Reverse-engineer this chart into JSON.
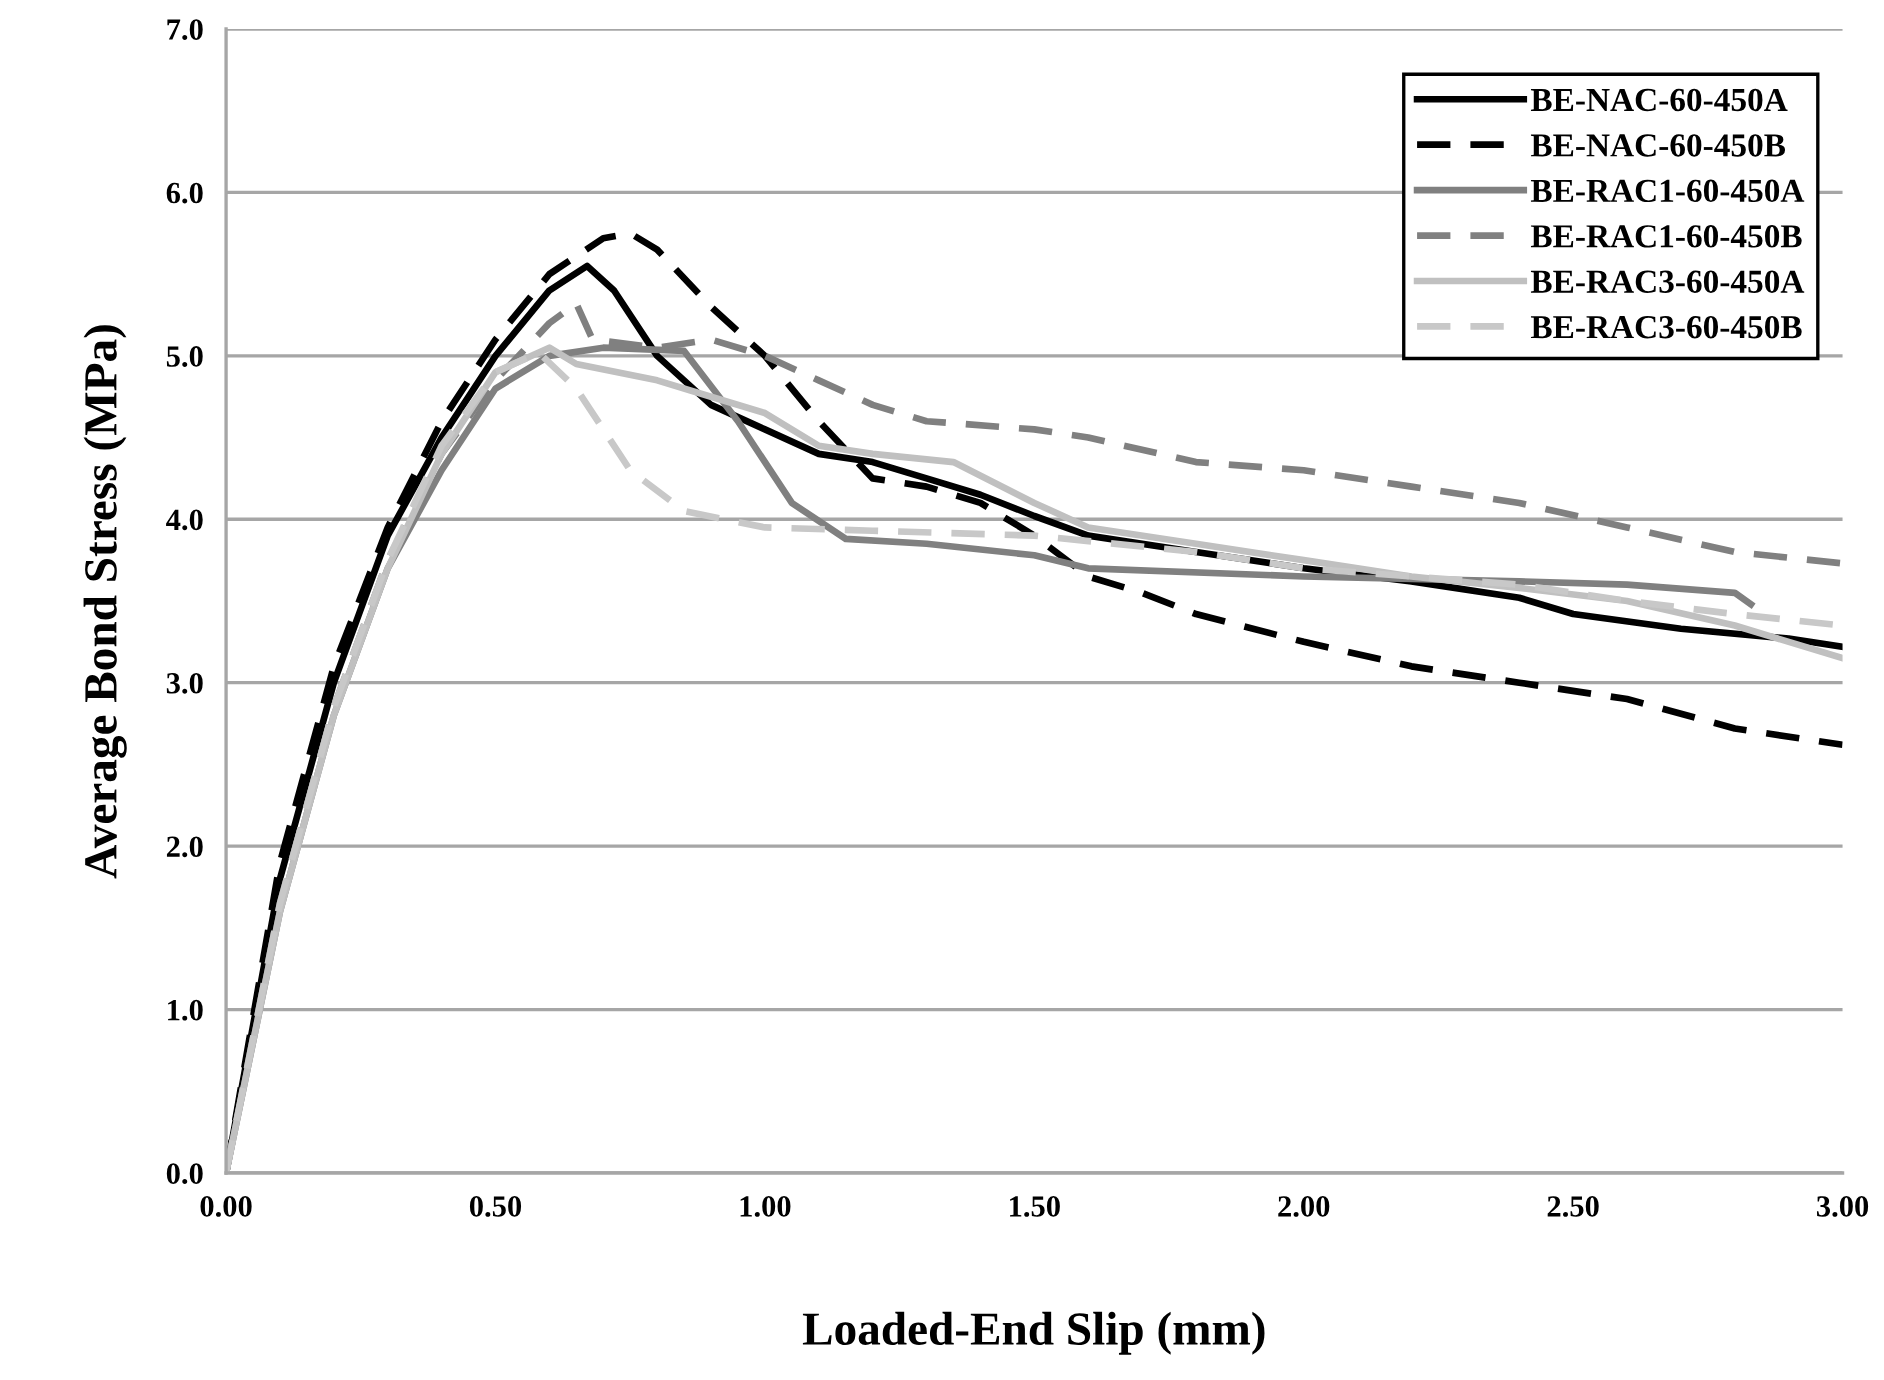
{
  "chart_data": {
    "type": "line",
    "xlabel": "Loaded-End Slip (mm)",
    "ylabel": "Average Bond Stress (MPa)",
    "xlim": [
      0,
      3
    ],
    "ylim": [
      0,
      7
    ],
    "xticks": [
      {
        "value": 0,
        "label": "0.00"
      },
      {
        "value": 0.5,
        "label": "0.50"
      },
      {
        "value": 1,
        "label": "1.00"
      },
      {
        "value": 1.5,
        "label": "1.50"
      },
      {
        "value": 2,
        "label": "2.00"
      },
      {
        "value": 2.5,
        "label": "2.50"
      },
      {
        "value": 3,
        "label": "3.00"
      }
    ],
    "yticks": [
      {
        "value": 0,
        "label": "0.0"
      },
      {
        "value": 1,
        "label": "1.0"
      },
      {
        "value": 2,
        "label": "2.0"
      },
      {
        "value": 3,
        "label": "3.0"
      },
      {
        "value": 4,
        "label": "4.0"
      },
      {
        "value": 5,
        "label": "5.0"
      },
      {
        "value": 6,
        "label": "6.0"
      },
      {
        "value": 7,
        "label": "7.0"
      }
    ],
    "grid": "y",
    "legend": "top right",
    "marker": "none",
    "series": [
      {
        "name": "BE-NAC-60-450A",
        "color": "#000000",
        "line_style": "solid",
        "x": [
          0,
          0.05,
          0.1,
          0.2,
          0.3,
          0.4,
          0.5,
          0.6,
          0.67,
          0.72,
          0.8,
          0.9,
          1.0,
          1.1,
          1.2,
          1.3,
          1.4,
          1.5,
          1.6,
          1.8,
          2.0,
          2.2,
          2.4,
          2.5,
          2.7,
          2.9,
          3.0
        ],
        "values": [
          0,
          0.9,
          1.8,
          3.0,
          3.9,
          4.5,
          5.0,
          5.4,
          5.55,
          5.4,
          5.0,
          4.7,
          4.55,
          4.4,
          4.35,
          4.25,
          4.15,
          4.02,
          3.9,
          3.8,
          3.7,
          3.62,
          3.52,
          3.42,
          3.33,
          3.27,
          3.22
        ]
      },
      {
        "name": "BE-NAC-60-450B",
        "color": "#000000",
        "line_style": "dashed",
        "x": [
          0,
          0.05,
          0.1,
          0.2,
          0.3,
          0.4,
          0.5,
          0.6,
          0.7,
          0.75,
          0.8,
          0.9,
          1.0,
          1.1,
          1.2,
          1.3,
          1.4,
          1.5,
          1.6,
          1.7,
          1.8,
          2.0,
          2.2,
          2.4,
          2.6,
          2.8,
          3.0
        ],
        "values": [
          0,
          0.95,
          1.9,
          3.1,
          3.95,
          4.6,
          5.1,
          5.5,
          5.72,
          5.75,
          5.65,
          5.3,
          5.0,
          4.6,
          4.25,
          4.2,
          4.1,
          3.9,
          3.65,
          3.55,
          3.42,
          3.25,
          3.1,
          3.0,
          2.9,
          2.72,
          2.62
        ]
      },
      {
        "name": "BE-RAC1-60-450A",
        "color": "#808080",
        "line_style": "solid",
        "x": [
          0,
          0.1,
          0.2,
          0.3,
          0.4,
          0.5,
          0.6,
          0.7,
          0.85,
          0.95,
          1.05,
          1.15,
          1.3,
          1.5,
          1.6,
          2.0,
          2.4,
          2.6,
          2.8,
          2.83
        ],
        "values": [
          0,
          1.6,
          2.8,
          3.7,
          4.3,
          4.8,
          5.0,
          5.05,
          5.03,
          4.6,
          4.1,
          3.88,
          3.85,
          3.78,
          3.7,
          3.65,
          3.62,
          3.6,
          3.55,
          3.48
        ]
      },
      {
        "name": "BE-RAC1-60-450B",
        "color": "#808080",
        "line_style": "dashed",
        "x": [
          0,
          0.1,
          0.2,
          0.3,
          0.4,
          0.5,
          0.6,
          0.65,
          0.68,
          0.8,
          0.9,
          1.0,
          1.1,
          1.2,
          1.3,
          1.5,
          1.6,
          1.8,
          2.0,
          2.2,
          2.4,
          2.6,
          2.8,
          3.0
        ],
        "values": [
          0,
          1.65,
          2.85,
          3.75,
          4.4,
          4.85,
          5.2,
          5.32,
          5.1,
          5.05,
          5.1,
          5.0,
          4.85,
          4.7,
          4.6,
          4.55,
          4.5,
          4.35,
          4.3,
          4.2,
          4.1,
          3.95,
          3.8,
          3.73
        ]
      },
      {
        "name": "BE-RAC3-60-450A",
        "color": "#c0c0c0",
        "line_style": "solid",
        "x": [
          0,
          0.1,
          0.2,
          0.3,
          0.4,
          0.5,
          0.6,
          0.65,
          0.8,
          0.9,
          1.0,
          1.1,
          1.2,
          1.35,
          1.5,
          1.6,
          1.8,
          2.0,
          2.2,
          2.4,
          2.6,
          2.8,
          3.0
        ],
        "values": [
          0,
          1.6,
          2.8,
          3.7,
          4.4,
          4.9,
          5.05,
          4.95,
          4.85,
          4.75,
          4.65,
          4.45,
          4.4,
          4.35,
          4.1,
          3.95,
          3.85,
          3.75,
          3.65,
          3.58,
          3.5,
          3.35,
          3.15
        ]
      },
      {
        "name": "BE-RAC3-60-450B",
        "color": "#c8c8c8",
        "line_style": "dashed",
        "x": [
          0,
          0.1,
          0.2,
          0.3,
          0.4,
          0.5,
          0.58,
          0.65,
          0.75,
          0.85,
          1.0,
          1.2,
          1.5,
          1.8,
          2.0,
          2.4,
          2.6,
          2.8,
          3.0
        ],
        "values": [
          0,
          1.65,
          2.85,
          3.75,
          4.45,
          4.9,
          5.02,
          4.8,
          4.3,
          4.05,
          3.95,
          3.93,
          3.9,
          3.8,
          3.7,
          3.6,
          3.5,
          3.42,
          3.35
        ]
      }
    ]
  }
}
